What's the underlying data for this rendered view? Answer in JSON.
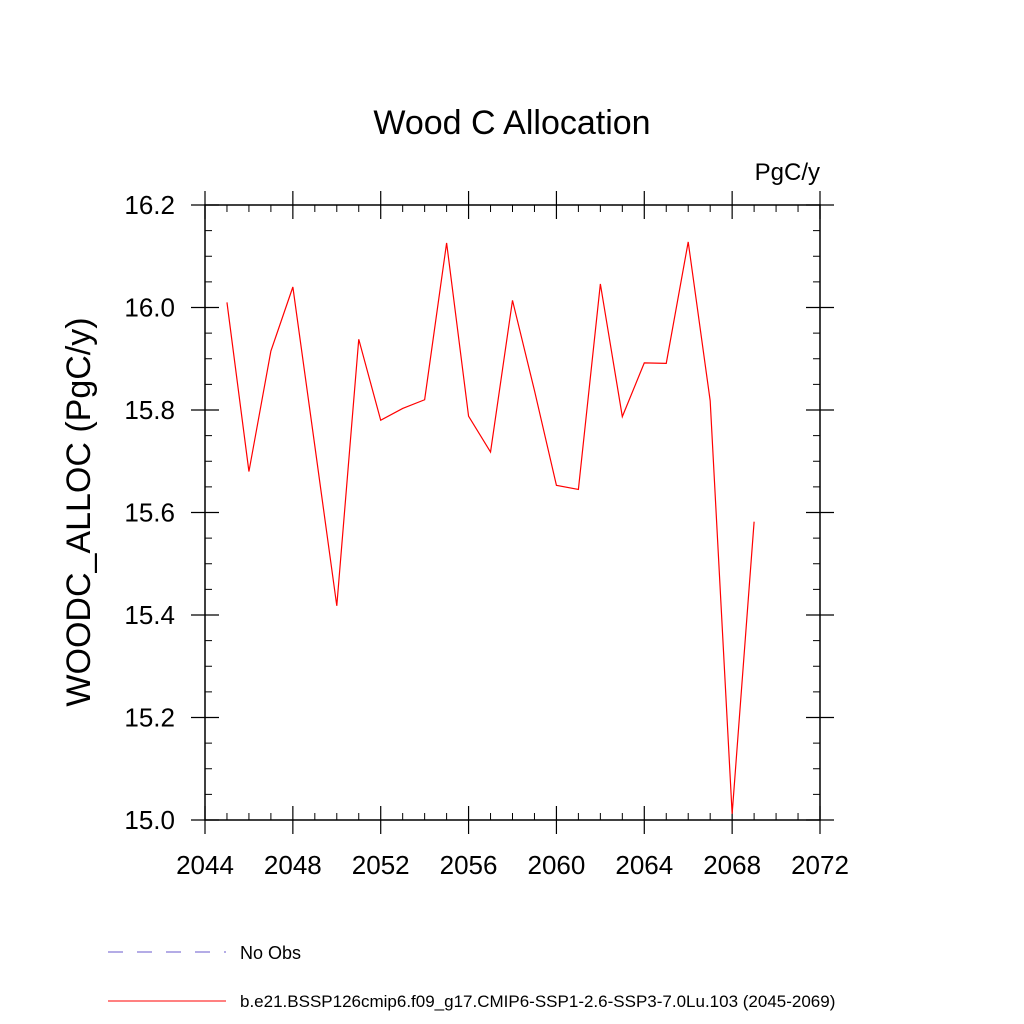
{
  "chart_data": {
    "type": "line",
    "title": "Wood C Allocation",
    "units_label": "PgC/y",
    "ylabel": "WOODC_ALLOC  (PgC/y)",
    "xlabel": "",
    "xlim": [
      2044,
      2072
    ],
    "ylim": [
      15.0,
      16.2
    ],
    "x_ticks": [
      2044,
      2048,
      2052,
      2056,
      2060,
      2064,
      2068,
      2072
    ],
    "x_tick_labels": [
      "2044",
      "2048",
      "2052",
      "2056",
      "2060",
      "2064",
      "2068",
      "2072"
    ],
    "y_ticks": [
      15.0,
      15.2,
      15.4,
      15.6,
      15.8,
      16.0,
      16.2
    ],
    "y_tick_labels": [
      "15.0",
      "15.2",
      "15.4",
      "15.6",
      "15.8",
      "16.0",
      "16.2"
    ],
    "x_minor_step": 1,
    "y_minor_step": 0.05,
    "grid": false,
    "series": [
      {
        "name": "b.e21.BSSP126cmip6.f09_g17.CMIP6-SSP1-2.6-SSP3-7.0Lu.103 (2045-2069)",
        "color": "#ff0000",
        "style": "solid",
        "x": [
          2045,
          2046,
          2047,
          2048,
          2049,
          2050,
          2051,
          2052,
          2053,
          2054,
          2055,
          2056,
          2057,
          2058,
          2059,
          2060,
          2061,
          2062,
          2063,
          2064,
          2065,
          2066,
          2067,
          2068,
          2069
        ],
        "values": [
          16.01,
          15.68,
          15.915,
          16.04,
          15.73,
          15.418,
          15.938,
          15.78,
          15.803,
          15.82,
          16.126,
          15.788,
          15.718,
          16.014,
          15.838,
          15.653,
          15.645,
          16.046,
          15.787,
          15.892,
          15.891,
          16.128,
          15.818,
          15.012,
          15.582
        ]
      }
    ],
    "legend": [
      {
        "label": "No Obs",
        "color": "#6a5acd",
        "style": "dashed"
      },
      {
        "label": "b.e21.BSSP126cmip6.f09_g17.CMIP6-SSP1-2.6-SSP3-7.0Lu.103 (2045-2069)",
        "color": "#ff0000",
        "style": "solid"
      }
    ],
    "legend_position": "bottom-left"
  }
}
